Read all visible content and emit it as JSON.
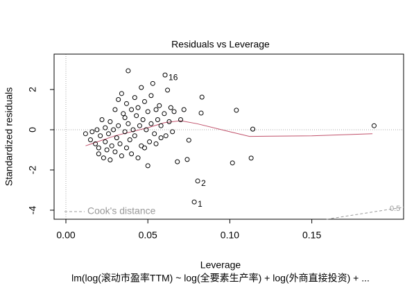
{
  "chart_data": {
    "type": "scatter",
    "title": "Residuals vs Leverage",
    "xlabel": "Leverage",
    "ylabel": "Standardized residuals",
    "subtitle": "lm(log(滚动市盈率TTM) ~ log(全要素生产率) + log(外商直接投资) + ...",
    "xlim": [
      -0.0072,
      0.206
    ],
    "ylim": [
      -4.45,
      3.76
    ],
    "xticks": [
      {
        "value": 0,
        "label": "0.00"
      },
      {
        "value": 0.05,
        "label": "0.05"
      },
      {
        "value": 0.1,
        "label": "0.10"
      },
      {
        "value": 0.15,
        "label": "0.15"
      }
    ],
    "yticks": [
      -4,
      -2,
      0,
      2
    ],
    "color": "#000000",
    "x": [
      0.012,
      0.015,
      0.016,
      0.018,
      0.019,
      0.02,
      0.02,
      0.021,
      0.022,
      0.023,
      0.024,
      0.024,
      0.025,
      0.026,
      0.027,
      0.027,
      0.028,
      0.029,
      0.03,
      0.03,
      0.031,
      0.032,
      0.032,
      0.033,
      0.034,
      0.034,
      0.035,
      0.036,
      0.036,
      0.037,
      0.037,
      0.038,
      0.038,
      0.039,
      0.04,
      0.04,
      0.041,
      0.042,
      0.042,
      0.043,
      0.044,
      0.044,
      0.045,
      0.046,
      0.046,
      0.047,
      0.048,
      0.048,
      0.049,
      0.05,
      0.05,
      0.051,
      0.052,
      0.052,
      0.053,
      0.054,
      0.055,
      0.055,
      0.056,
      0.057,
      0.058,
      0.058,
      0.0605,
      0.06,
      0.061,
      0.062,
      0.063,
      0.064,
      0.065,
      0.066,
      0.068,
      0.07,
      0.072,
      0.074,
      0.075,
      0.0783,
      0.0804,
      0.0825,
      0.083,
      0.1016,
      0.104,
      0.113,
      0.114,
      0.188
    ],
    "y": [
      -0.2,
      -0.5,
      -0.1,
      -0.7,
      0.0,
      -1.2,
      -0.9,
      -0.3,
      0.5,
      -1.4,
      -0.6,
      0.1,
      -1.0,
      -0.2,
      0.4,
      -1.5,
      -0.8,
      0.0,
      -1.1,
      1.0,
      -0.4,
      0.2,
      1.5,
      -0.7,
      1.8,
      -1.3,
      0.8,
      -0.1,
      0.6,
      1.3,
      -0.9,
      0.3,
      2.93,
      -0.5,
      1.0,
      -1.2,
      0.0,
      1.6,
      -0.3,
      0.7,
      -1.4,
      1.1,
      0.2,
      -0.8,
      2.1,
      0.5,
      -0.9,
      1.4,
      0.0,
      -1.79,
      0.9,
      -0.6,
      1.7,
      0.3,
      2.3,
      -0.2,
      1.0,
      -0.7,
      0.5,
      1.2,
      -0.4,
      0.2,
      2.72,
      0.8,
      -0.3,
      1.97,
      0.4,
      1.1,
      -0.1,
      0.9,
      -1.59,
      0.5,
      1.0,
      -1.48,
      -0.52,
      -3.59,
      -2.55,
      0.83,
      1.62,
      -1.65,
      0.97,
      -1.41,
      0.03,
      0.2
    ],
    "smooth": {
      "color": "#c0506a",
      "x": [
        0.012,
        0.03,
        0.05,
        0.06,
        0.07,
        0.08,
        0.1,
        0.112,
        0.15,
        0.187
      ],
      "y": [
        -0.8,
        -0.3,
        0.1,
        0.35,
        0.45,
        0.3,
        -0.1,
        -0.33,
        -0.3,
        -0.2
      ]
    },
    "cook_line": {
      "label": "0.5",
      "color": "#999999",
      "x": [
        0.159,
        0.206
      ],
      "y": [
        -4.45,
        -3.85
      ]
    },
    "legend": "Cook's distance",
    "annotations": [
      {
        "text": "16",
        "x": 0.0605,
        "y": 2.72
      },
      {
        "text": "2",
        "x": 0.0804,
        "y": -2.55
      },
      {
        "text": "1",
        "x": 0.0783,
        "y": -3.59
      }
    ]
  }
}
